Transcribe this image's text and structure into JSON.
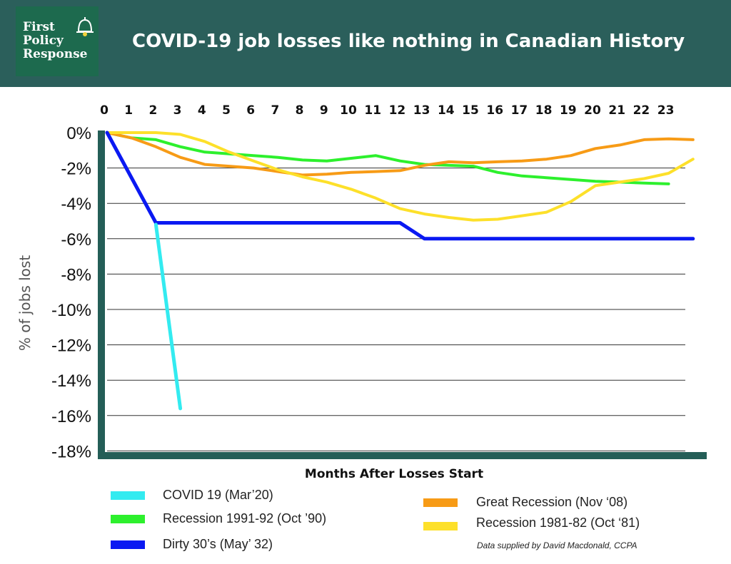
{
  "header": {
    "logo_lines": [
      "First",
      "Policy",
      "Response"
    ],
    "title": "COVID-19 job losses like nothing in Canadian History"
  },
  "colors": {
    "header_bg": "#2b5f5b",
    "logo_bg": "#1d6a4e",
    "axis": "#245e57",
    "bell": "#f2d13c"
  },
  "footnote": "Data supplied by David Macdonald, CCPA",
  "chart_data": {
    "type": "line",
    "title": "COVID-19 job losses like nothing in Canadian History",
    "xlabel": "Months After Losses Start",
    "ylabel": "% of jobs lost",
    "x_ticks": [
      "0",
      "1",
      "2",
      "3",
      "4",
      "5",
      "6",
      "7",
      "8",
      "9",
      "10",
      "11",
      "12",
      "13",
      "14",
      "15",
      "16",
      "17",
      "18",
      "19",
      "20",
      "21",
      "22",
      "23"
    ],
    "y_ticks": [
      "0%",
      "-2%",
      "-4%",
      "-6%",
      "-8%",
      "-10%",
      "-12%",
      "-14%",
      "-16%",
      "-18%"
    ],
    "ylim": [
      -18,
      0
    ],
    "xlim": [
      0,
      24
    ],
    "grid": "horizontal",
    "legend_position": "bottom",
    "series": [
      {
        "name": "COVID 19 (Mar’20)",
        "color": "#33ebf0",
        "points": [
          [
            2,
            -5.2
          ],
          [
            3,
            -15.6
          ]
        ]
      },
      {
        "name": "Recession 1991-92 (Oct ’90)",
        "color": "#2df02d",
        "points": [
          [
            0,
            0
          ],
          [
            1,
            -0.3
          ],
          [
            2,
            -0.4
          ],
          [
            3,
            -0.8
          ],
          [
            4,
            -1.1
          ],
          [
            5,
            -1.2
          ],
          [
            6,
            -1.3
          ],
          [
            7,
            -1.4
          ],
          [
            8,
            -1.55
          ],
          [
            9,
            -1.6
          ],
          [
            10,
            -1.45
          ],
          [
            11,
            -1.3
          ],
          [
            12,
            -1.6
          ],
          [
            13,
            -1.8
          ],
          [
            14,
            -1.85
          ],
          [
            15,
            -1.9
          ],
          [
            16,
            -2.25
          ],
          [
            17,
            -2.45
          ],
          [
            18,
            -2.55
          ],
          [
            19,
            -2.65
          ],
          [
            20,
            -2.75
          ],
          [
            21,
            -2.8
          ],
          [
            22,
            -2.85
          ],
          [
            23,
            -2.9
          ]
        ]
      },
      {
        "name": "Dirty 30’s (May’ 32)",
        "color": "#0a19f2",
        "points": [
          [
            0,
            0
          ],
          [
            2,
            -5.1
          ],
          [
            12,
            -5.1
          ],
          [
            13,
            -6.0
          ],
          [
            24,
            -6.0
          ]
        ]
      },
      {
        "name": "Great Recession (Nov ‘08)",
        "color": "#f79b16",
        "points": [
          [
            0,
            0
          ],
          [
            1,
            -0.3
          ],
          [
            2,
            -0.8
          ],
          [
            3,
            -1.4
          ],
          [
            4,
            -1.8
          ],
          [
            5,
            -1.9
          ],
          [
            6,
            -2.0
          ],
          [
            7,
            -2.2
          ],
          [
            8,
            -2.4
          ],
          [
            9,
            -2.35
          ],
          [
            10,
            -2.25
          ],
          [
            11,
            -2.2
          ],
          [
            12,
            -2.15
          ],
          [
            13,
            -1.85
          ],
          [
            14,
            -1.65
          ],
          [
            15,
            -1.7
          ],
          [
            16,
            -1.65
          ],
          [
            17,
            -1.6
          ],
          [
            18,
            -1.5
          ],
          [
            19,
            -1.3
          ],
          [
            20,
            -0.9
          ],
          [
            21,
            -0.7
          ],
          [
            22,
            -0.4
          ],
          [
            23,
            -0.35
          ],
          [
            24,
            -0.4
          ]
        ]
      },
      {
        "name": "Recession 1981-82 (Oct ‘81)",
        "color": "#fde02a",
        "points": [
          [
            0,
            0
          ],
          [
            1,
            0
          ],
          [
            2,
            0
          ],
          [
            3,
            -0.1
          ],
          [
            4,
            -0.5
          ],
          [
            5,
            -1.1
          ],
          [
            6,
            -1.6
          ],
          [
            7,
            -2.1
          ],
          [
            8,
            -2.5
          ],
          [
            9,
            -2.8
          ],
          [
            10,
            -3.2
          ],
          [
            11,
            -3.7
          ],
          [
            12,
            -4.3
          ],
          [
            13,
            -4.6
          ],
          [
            14,
            -4.8
          ],
          [
            15,
            -4.95
          ],
          [
            16,
            -4.9
          ],
          [
            17,
            -4.7
          ],
          [
            18,
            -4.5
          ],
          [
            19,
            -3.9
          ],
          [
            20,
            -3.0
          ],
          [
            21,
            -2.8
          ],
          [
            22,
            -2.6
          ],
          [
            23,
            -2.3
          ],
          [
            24,
            -1.5
          ]
        ]
      }
    ]
  }
}
